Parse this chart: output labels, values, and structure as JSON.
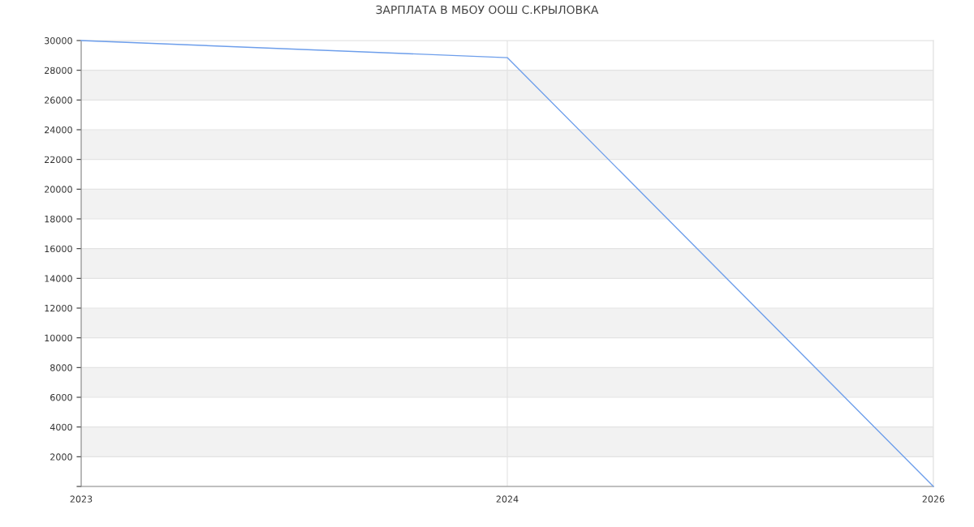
{
  "chart_data": {
    "type": "line",
    "title": "ЗАРПЛАТА В МБОУ ООШ С.КРЫЛОВКА",
    "categories": [
      "2023",
      "2024",
      "2026"
    ],
    "series": [
      {
        "color": "#6d9eeb",
        "values": [
          30000,
          28850,
          0
        ]
      }
    ],
    "ylim": [
      0,
      30000
    ],
    "yticks": [
      {
        "value": 0,
        "label": null
      },
      2000,
      4000,
      6000,
      8000,
      10000,
      12000,
      14000,
      16000,
      18000,
      20000,
      22000,
      24000,
      26000,
      28000,
      30000
    ],
    "grid": true,
    "marker": "none",
    "line_style": "solid"
  }
}
